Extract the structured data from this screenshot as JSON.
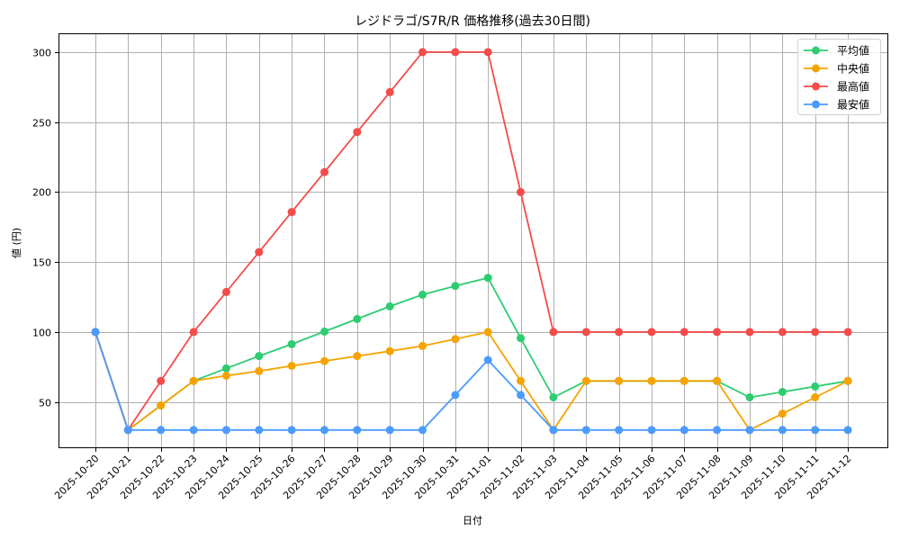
{
  "chart_data": {
    "type": "line",
    "title": "レジドラゴ/S7R/R 価格推移(過去30日間)",
    "xlabel": "日付",
    "ylabel": "値 (円)",
    "ylim": [
      17,
      313
    ],
    "yticks": [
      50,
      100,
      150,
      200,
      250,
      300
    ],
    "grid": true,
    "legend_position": "upper right",
    "categories": [
      "2025-10-20",
      "2025-10-21",
      "2025-10-22",
      "2025-10-23",
      "2025-10-24",
      "2025-10-25",
      "2025-10-26",
      "2025-10-27",
      "2025-10-28",
      "2025-10-29",
      "2025-10-30",
      "2025-10-31",
      "2025-11-01",
      "2025-11-02",
      "2025-11-03",
      "2025-11-04",
      "2025-11-05",
      "2025-11-06",
      "2025-11-07",
      "2025-11-08",
      "2025-11-09",
      "2025-11-10",
      "2025-11-11",
      "2025-11-12"
    ],
    "series": [
      {
        "name": "平均値",
        "color": "#2ecc71",
        "values": [
          100,
          30,
          47.5,
          65,
          74,
          82.8,
          91.3,
          100.3,
          109.3,
          118.3,
          126.7,
          132.9,
          138.7,
          95.6,
          53.3,
          65,
          65,
          65,
          65,
          65,
          53.3,
          57.2,
          61.1,
          65
        ]
      },
      {
        "name": "中央値",
        "color": "#f5a300",
        "values": [
          100,
          30,
          47.5,
          65,
          68.8,
          72.1,
          75.8,
          79.2,
          82.8,
          86.3,
          90,
          95,
          100,
          65,
          30,
          65,
          65,
          65,
          65,
          65,
          30,
          41.7,
          53.3,
          65
        ]
      },
      {
        "name": "最高値",
        "color": "#f44b4b",
        "values": [
          100,
          30,
          65,
          100,
          128.6,
          157.1,
          185.7,
          214.3,
          242.9,
          271.4,
          300,
          300,
          300,
          200,
          100,
          100,
          100,
          100,
          100,
          100,
          100,
          100,
          100,
          100
        ]
      },
      {
        "name": "最安値",
        "color": "#4b9bff",
        "values": [
          100,
          30,
          30,
          30,
          30,
          30,
          30,
          30,
          30,
          30,
          30,
          55,
          80,
          55,
          30,
          30,
          30,
          30,
          30,
          30,
          30,
          30,
          30,
          30
        ]
      }
    ]
  }
}
